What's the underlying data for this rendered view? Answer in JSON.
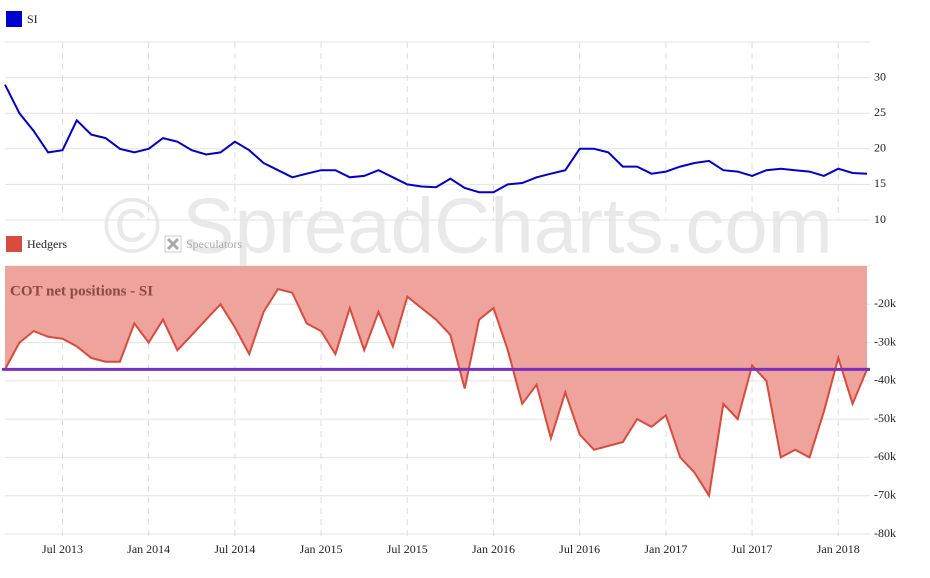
{
  "watermark": "© SpreadCharts.com",
  "chart_data": [
    {
      "type": "line",
      "x": [
        "2013-03",
        "2013-04",
        "2013-05",
        "2013-06",
        "2013-07",
        "2013-08",
        "2013-09",
        "2013-10",
        "2013-11",
        "2013-12",
        "2014-01",
        "2014-02",
        "2014-03",
        "2014-04",
        "2014-05",
        "2014-06",
        "2014-07",
        "2014-08",
        "2014-09",
        "2014-10",
        "2014-11",
        "2014-12",
        "2015-01",
        "2015-02",
        "2015-03",
        "2015-04",
        "2015-05",
        "2015-06",
        "2015-07",
        "2015-08",
        "2015-09",
        "2015-10",
        "2015-11",
        "2015-12",
        "2016-01",
        "2016-02",
        "2016-03",
        "2016-04",
        "2016-05",
        "2016-06",
        "2016-07",
        "2016-08",
        "2016-09",
        "2016-10",
        "2016-11",
        "2016-12",
        "2017-01",
        "2017-02",
        "2017-03",
        "2017-04",
        "2017-05",
        "2017-06",
        "2017-07",
        "2017-08",
        "2017-09",
        "2017-10",
        "2017-11",
        "2017-12",
        "2018-01",
        "2018-02",
        "2018-03"
      ],
      "xlim": [
        "2013-03",
        "2018-03"
      ],
      "xticks": [
        "2013-07",
        "2014-01",
        "2014-07",
        "2015-01",
        "2015-07",
        "2016-01",
        "2016-07",
        "2017-01",
        "2017-07",
        "2018-01"
      ],
      "series": [
        {
          "name": "SI",
          "color": "#0000cc",
          "values": [
            29,
            25,
            22.5,
            19.5,
            19.8,
            24,
            22,
            21.5,
            20,
            19.5,
            20,
            21.5,
            21,
            19.8,
            19.2,
            19.5,
            21,
            19.8,
            18,
            17,
            16,
            16.5,
            17,
            17,
            16,
            16.2,
            17,
            16,
            15,
            14.7,
            14.6,
            15.8,
            14.5,
            13.9,
            13.9,
            15,
            15.2,
            16,
            16.5,
            17,
            20,
            20,
            19.5,
            17.5,
            17.5,
            16.5,
            16.8,
            17.5,
            18,
            18.3,
            17,
            16.8,
            16.2,
            17,
            17.2,
            17,
            16.8,
            16.2,
            17.2,
            16.6,
            16.5
          ]
        }
      ],
      "ylim": [
        10,
        35
      ],
      "yticks": [
        10,
        15,
        20,
        25,
        30
      ],
      "grid": true
    },
    {
      "type": "area",
      "fill_to": "top",
      "annotation": "COT net positions - SI",
      "x": [
        "2013-03",
        "2013-04",
        "2013-05",
        "2013-06",
        "2013-07",
        "2013-08",
        "2013-09",
        "2013-10",
        "2013-11",
        "2013-12",
        "2014-01",
        "2014-02",
        "2014-03",
        "2014-04",
        "2014-05",
        "2014-06",
        "2014-07",
        "2014-08",
        "2014-09",
        "2014-10",
        "2014-11",
        "2014-12",
        "2015-01",
        "2015-02",
        "2015-03",
        "2015-04",
        "2015-05",
        "2015-06",
        "2015-07",
        "2015-08",
        "2015-09",
        "2015-10",
        "2015-11",
        "2015-12",
        "2016-01",
        "2016-02",
        "2016-03",
        "2016-04",
        "2016-05",
        "2016-06",
        "2016-07",
        "2016-08",
        "2016-09",
        "2016-10",
        "2016-11",
        "2016-12",
        "2017-01",
        "2017-02",
        "2017-03",
        "2017-04",
        "2017-05",
        "2017-06",
        "2017-07",
        "2017-08",
        "2017-09",
        "2017-10",
        "2017-11",
        "2017-12",
        "2018-01",
        "2018-02",
        "2018-03"
      ],
      "xlim": [
        "2013-03",
        "2018-03"
      ],
      "xticks": [
        {
          "value": "2013-07",
          "label": "Jul 2013"
        },
        {
          "value": "2014-01",
          "label": "Jan 2014"
        },
        {
          "value": "2014-07",
          "label": "Jul 2014"
        },
        {
          "value": "2015-01",
          "label": "Jan 2015"
        },
        {
          "value": "2015-07",
          "label": "Jul 2015"
        },
        {
          "value": "2016-01",
          "label": "Jan 2016"
        },
        {
          "value": "2016-07",
          "label": "Jul 2016"
        },
        {
          "value": "2017-01",
          "label": "Jan 2017"
        },
        {
          "value": "2017-07",
          "label": "Jul 2017"
        },
        {
          "value": "2018-01",
          "label": "Jan 2018"
        }
      ],
      "series": [
        {
          "name": "Hedgers",
          "color": "#d94b3b",
          "fill": "#eea39d",
          "values": [
            -37000,
            -30000,
            -27000,
            -28500,
            -29000,
            -31000,
            -34000,
            -35000,
            -35000,
            -25000,
            -30000,
            -24000,
            -32000,
            -28000,
            -24000,
            -20000,
            -26000,
            -33000,
            -22000,
            -16000,
            -17000,
            -25000,
            -27000,
            -33000,
            -21000,
            -32000,
            -22000,
            -31000,
            -18000,
            -21000,
            -24000,
            -28000,
            -42000,
            -24000,
            -21000,
            -32000,
            -46000,
            -41000,
            -55000,
            -43000,
            -54000,
            -58000,
            -57000,
            -56000,
            -50000,
            -52000,
            -49000,
            -60000,
            -64000,
            -70000,
            -46000,
            -50000,
            -36000,
            -40000,
            -60000,
            -58000,
            -60000,
            -48000,
            -34000,
            -46000,
            -37000
          ]
        },
        {
          "name": "Speculators",
          "color": "#cccccc",
          "visible": false
        }
      ],
      "reference_line": {
        "value": -37000,
        "color": "#7b2fbe"
      },
      "ylim": [
        -80000,
        -10000
      ],
      "yticks": [
        {
          "value": -80000,
          "label": "-80k"
        },
        {
          "value": -70000,
          "label": "-70k"
        },
        {
          "value": -60000,
          "label": "-60k"
        },
        {
          "value": -50000,
          "label": "-50k"
        },
        {
          "value": -40000,
          "label": "-40k"
        },
        {
          "value": -30000,
          "label": "-30k"
        },
        {
          "value": -20000,
          "label": "-20k"
        }
      ],
      "grid": true
    }
  ]
}
